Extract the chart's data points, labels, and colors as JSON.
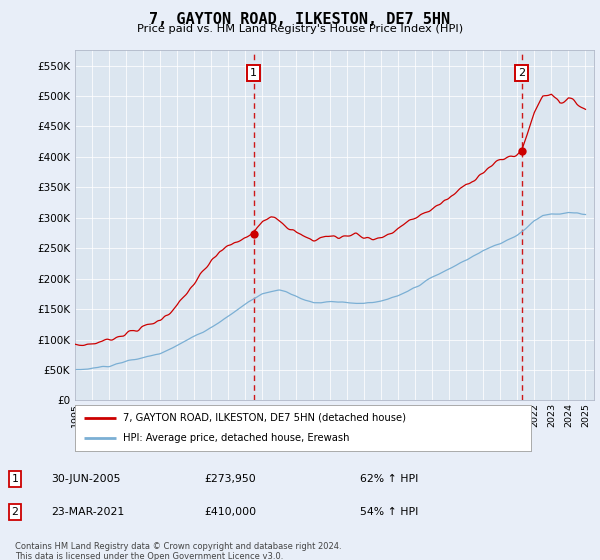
{
  "title": "7, GAYTON ROAD, ILKESTON, DE7 5HN",
  "subtitle": "Price paid vs. HM Land Registry's House Price Index (HPI)",
  "background_color": "#e8eef8",
  "plot_bg_color": "#dce6f0",
  "ylim": [
    0,
    575000
  ],
  "yticks": [
    0,
    50000,
    100000,
    150000,
    200000,
    250000,
    300000,
    350000,
    400000,
    450000,
    500000,
    550000
  ],
  "ytick_labels": [
    "£0",
    "£50K",
    "£100K",
    "£150K",
    "£200K",
    "£250K",
    "£300K",
    "£350K",
    "£400K",
    "£450K",
    "£500K",
    "£550K"
  ],
  "xlabel_years": [
    1995,
    1996,
    1997,
    1998,
    1999,
    2000,
    2001,
    2002,
    2003,
    2004,
    2005,
    2006,
    2007,
    2008,
    2009,
    2010,
    2011,
    2012,
    2013,
    2014,
    2015,
    2016,
    2017,
    2018,
    2019,
    2020,
    2021,
    2022,
    2023,
    2024,
    2025
  ],
  "sale1_price": 273950,
  "sale1_x": 2005.5,
  "sale2_price": 410000,
  "sale2_x": 2021.25,
  "red_line_color": "#cc0000",
  "blue_line_color": "#7bafd4",
  "dashed_line_color": "#cc0000",
  "legend_label_red": "7, GAYTON ROAD, ILKESTON, DE7 5HN (detached house)",
  "legend_label_blue": "HPI: Average price, detached house, Erewash",
  "annotation1_date": "30-JUN-2005",
  "annotation1_price": "£273,950",
  "annotation1_pct": "62% ↑ HPI",
  "annotation2_date": "23-MAR-2021",
  "annotation2_price": "£410,000",
  "annotation2_pct": "54% ↑ HPI",
  "footer": "Contains HM Land Registry data © Crown copyright and database right 2024.\nThis data is licensed under the Open Government Licence v3.0."
}
